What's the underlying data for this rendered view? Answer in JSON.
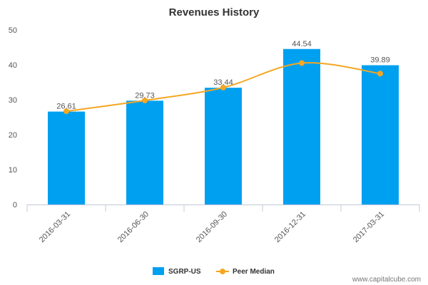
{
  "chart_data": {
    "type": "bar",
    "title": "Revenues History",
    "categories": [
      "2016-03-31",
      "2016-06-30",
      "2016-09-30",
      "2016-12-31",
      "2017-03-31"
    ],
    "series": [
      {
        "name": "SGRP-US",
        "kind": "bar",
        "values": [
          26.61,
          29.73,
          33.44,
          44.54,
          39.89
        ]
      },
      {
        "name": "Peer Median",
        "kind": "line",
        "values": [
          26.7,
          29.8,
          33.5,
          40.5,
          37.5
        ]
      }
    ],
    "data_labels": [
      "26.61",
      "29.73",
      "33.44",
      "44.54",
      "39.89"
    ],
    "ylim": [
      0,
      50
    ],
    "yticks": [
      0,
      10,
      20,
      30,
      40,
      50
    ],
    "xlabel": "",
    "ylabel": "",
    "grid": false,
    "legend": "bottom-center",
    "colors": {
      "bar": "#00a0f0",
      "line": "#f5a623",
      "axis": "#c0c8d8"
    }
  },
  "credit": "www.capitalcube.com"
}
